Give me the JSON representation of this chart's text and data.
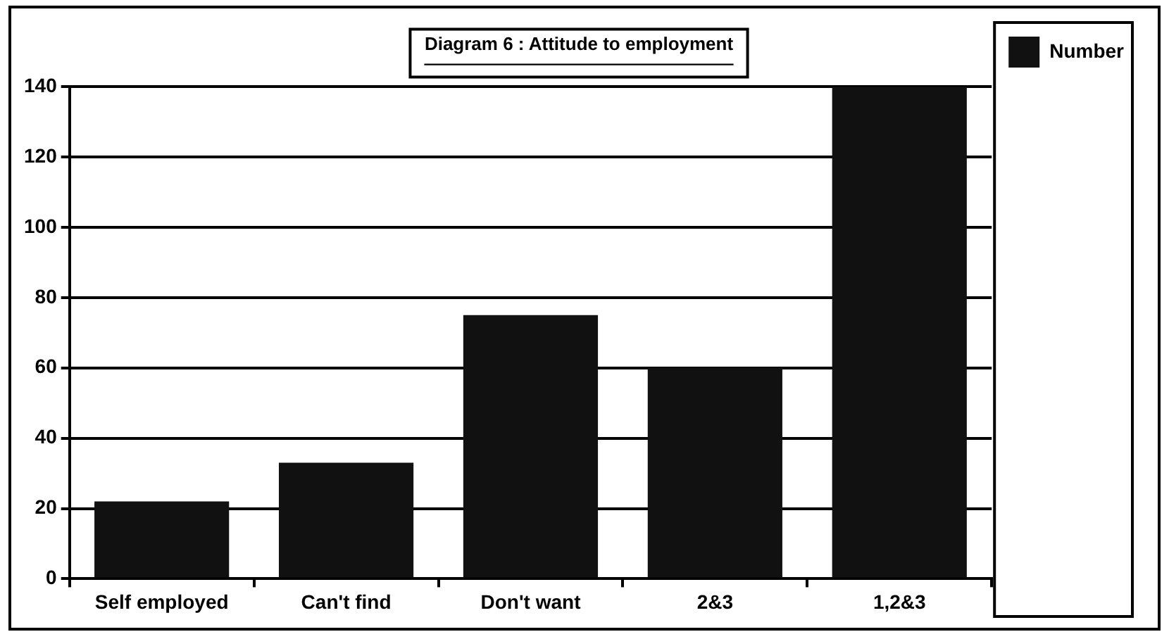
{
  "chart_data": {
    "type": "bar",
    "title": "Diagram 6 : Attitude to employment",
    "categories": [
      "Self employed",
      "Can't find",
      "Don't want",
      "2&3",
      "1,2&3"
    ],
    "series": [
      {
        "name": "Number",
        "color": "#111111",
        "values": [
          22,
          33,
          75,
          60,
          140
        ]
      }
    ],
    "ylim": [
      0,
      140
    ],
    "yticks": [
      0,
      20,
      40,
      60,
      80,
      100,
      120,
      140
    ],
    "grid": "y",
    "legend": "top right"
  }
}
